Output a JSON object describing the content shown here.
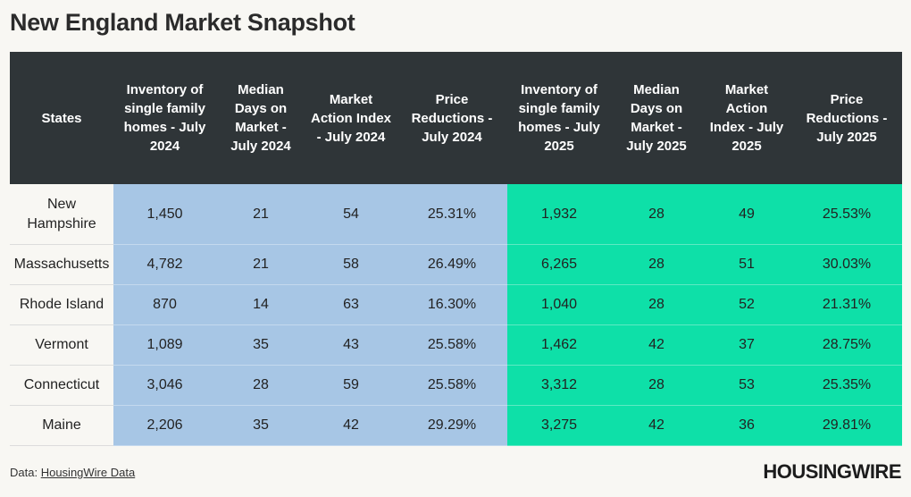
{
  "title": "New England Market Snapshot",
  "chart_data": {
    "type": "table",
    "columns": [
      "States",
      "Inventory of single family homes - July 2024",
      "Median Days on Market - July 2024",
      "Market Action Index - July 2024",
      "Price Reductions - July 2024",
      "Inventory of single family homes - July 2025",
      "Median Days on Market - July 2025",
      "Market Action Index - July 2025",
      "Price Reductions - July 2025"
    ],
    "rows": [
      [
        "New Hampshire",
        "1,450",
        "21",
        "54",
        "25.31%",
        "1,932",
        "28",
        "49",
        "25.53%"
      ],
      [
        "Massachusetts",
        "4,782",
        "21",
        "58",
        "26.49%",
        "6,265",
        "28",
        "51",
        "30.03%"
      ],
      [
        "Rhode Island",
        "870",
        "14",
        "63",
        "16.30%",
        "1,040",
        "28",
        "52",
        "21.31%"
      ],
      [
        "Vermont",
        "1,089",
        "35",
        "43",
        "25.58%",
        "1,462",
        "42",
        "37",
        "28.75%"
      ],
      [
        "Connecticut",
        "3,046",
        "28",
        "59",
        "25.58%",
        "3,312",
        "28",
        "53",
        "25.35%"
      ],
      [
        "Maine",
        "2,206",
        "35",
        "42",
        "29.29%",
        "3,275",
        "42",
        "36",
        "29.81%"
      ]
    ],
    "colors": {
      "header": "#2f3538",
      "year_2024": "#a7c6e5",
      "year_2025": "#0ee0a8"
    }
  },
  "footer": {
    "label": "Data:",
    "source": "HousingWire Data"
  },
  "logo": "HOUSINGWIRE"
}
